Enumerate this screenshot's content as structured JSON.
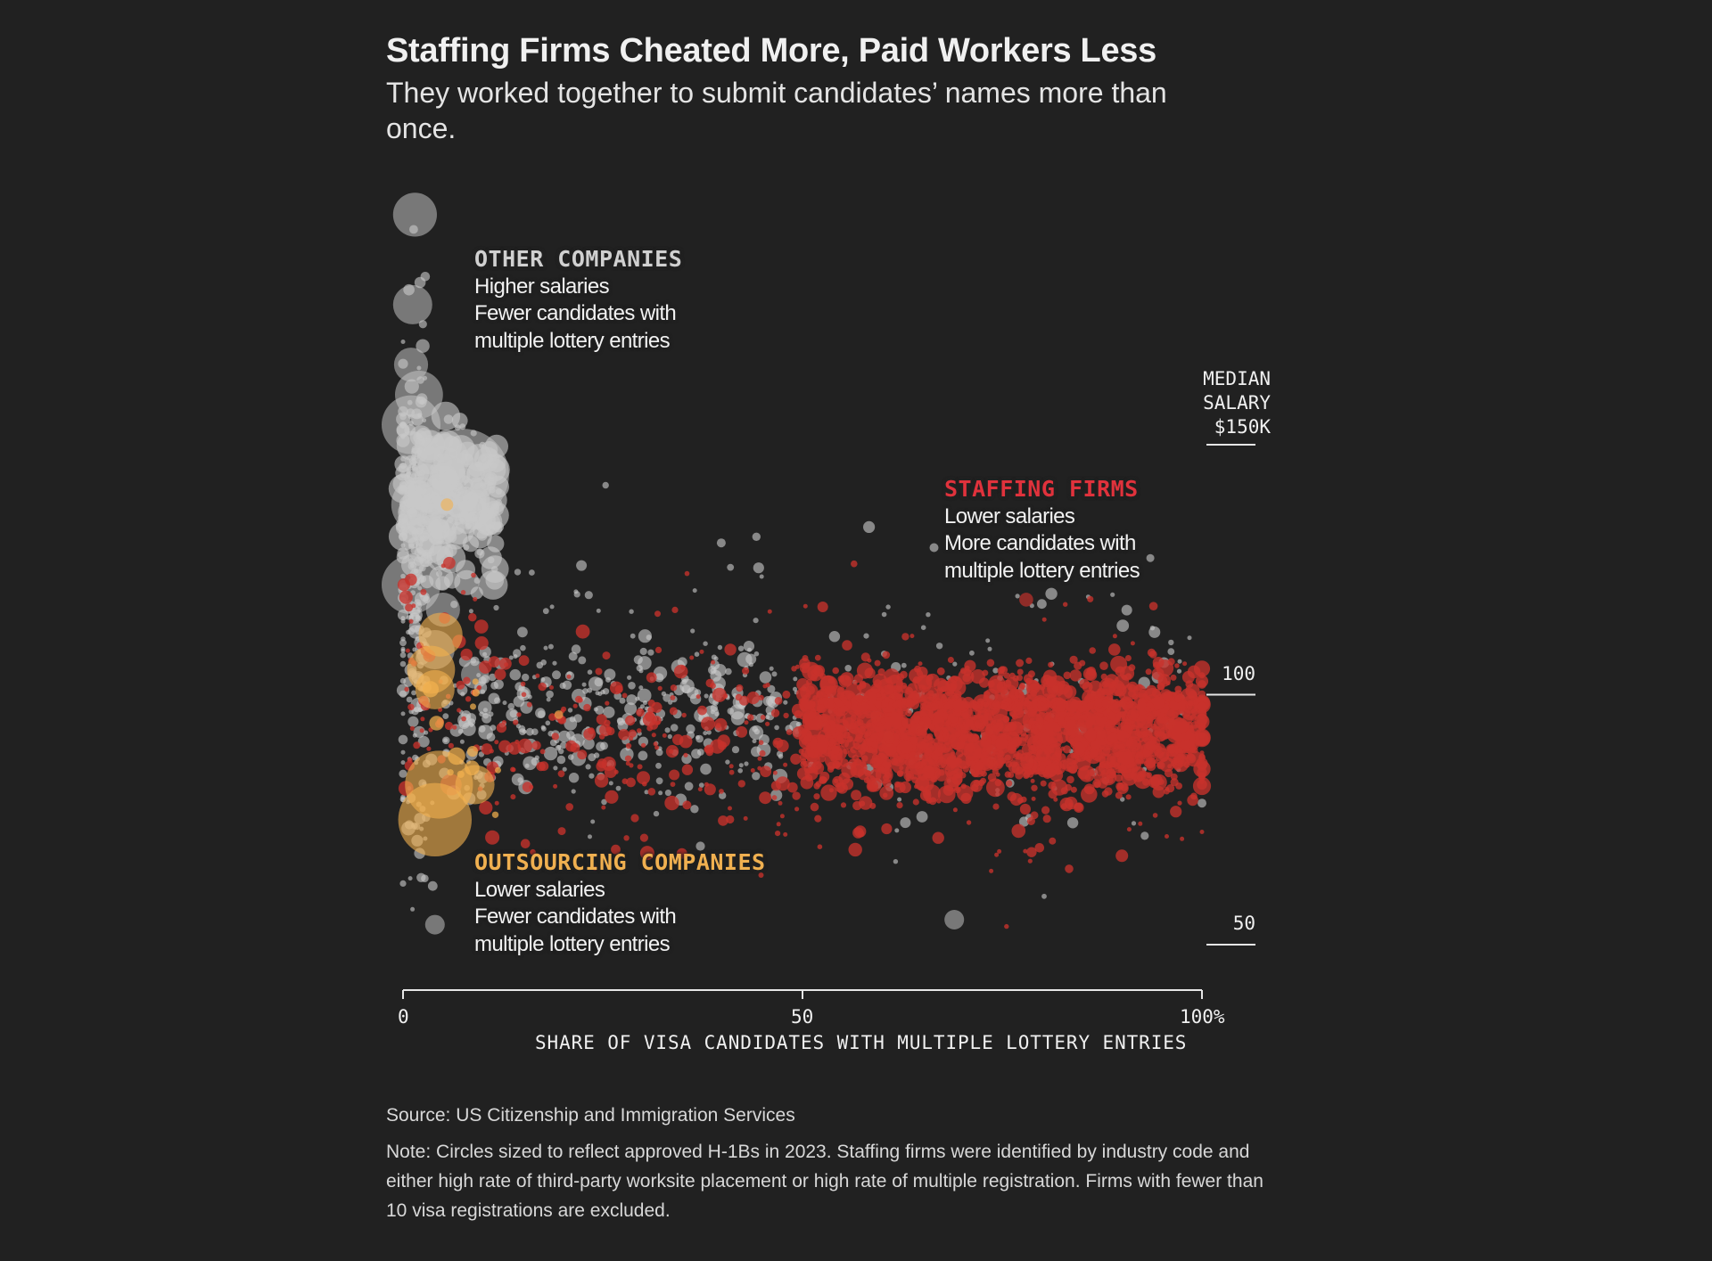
{
  "header": {
    "title": "Staffing Firms Cheated More, Paid Workers Less",
    "subtitle": "They worked together to submit candidates’ names more than once."
  },
  "annotations": {
    "other": {
      "heading": "OTHER COMPANIES",
      "lines": [
        "Higher salaries",
        "Fewer candidates with",
        "multiple lottery entries"
      ],
      "color": "#d0d0d0"
    },
    "staffing": {
      "heading": "STAFFING FIRMS",
      "lines": [
        "Lower salaries",
        "More candidates with",
        "multiple lottery entries"
      ],
      "color": "#e0323c"
    },
    "outsourcing": {
      "heading": "OUTSOURCING COMPANIES",
      "lines": [
        "Lower salaries",
        "Fewer candidates with",
        "multiple lottery entries"
      ],
      "color": "#f0b050"
    }
  },
  "footer": {
    "source": "Source: US Citizenship and Immigration Services",
    "note": "Note: Circles sized to reflect approved H-1Bs in 2023. Staffing firms were identified by industry code and either high rate of third-party worksite placement or high rate of multiple registration. Firms with fewer than 10 visa registrations are excluded."
  },
  "chart_data": {
    "type": "scatter",
    "title": "Staffing Firms Cheated More, Paid Workers Less",
    "xlabel": "SHARE OF VISA CANDIDATES WITH MULTIPLE LOTTERY ENTRIES",
    "ylabel": "MEDIAN SALARY",
    "xlim": [
      0,
      100
    ],
    "ylim": [
      42,
      204
    ],
    "x_ticks": [
      {
        "value": 0,
        "label": "0"
      },
      {
        "value": 50,
        "label": "50"
      },
      {
        "value": 100,
        "label": "100%"
      }
    ],
    "y_ticks": [
      {
        "value": 150,
        "label_lines": [
          "MEDIAN",
          "SALARY",
          "$150K"
        ]
      },
      {
        "value": 100,
        "label_lines": [
          "100"
        ]
      },
      {
        "value": 50,
        "label_lines": [
          "50"
        ]
      }
    ],
    "grid": false,
    "size_encoding": "approved H-1Bs in 2023",
    "colors": {
      "other": "#c8c8c8",
      "staffing": "#c8322c",
      "outsourcing": "#f2b04e",
      "background": "#212121",
      "axis": "#e6e6e6"
    },
    "series": [
      {
        "name": "Other companies",
        "key": "other",
        "notable_points": [
          {
            "x": 1.5,
            "y": 196,
            "size": 5
          },
          {
            "x": 1.2,
            "y": 178,
            "size": 4
          },
          {
            "x": 1.0,
            "y": 166,
            "size": 3
          },
          {
            "x": 2.0,
            "y": 160,
            "size": 6
          },
          {
            "x": 1.0,
            "y": 154,
            "size": 9
          },
          {
            "x": 7.5,
            "y": 144,
            "size": 22
          },
          {
            "x": 5.0,
            "y": 147,
            "size": 7
          },
          {
            "x": 2.0,
            "y": 138,
            "size": 8
          },
          {
            "x": 3.0,
            "y": 131,
            "size": 6
          },
          {
            "x": 1.0,
            "y": 122,
            "size": 9
          },
          {
            "x": 5.0,
            "y": 117,
            "size": 3
          },
          {
            "x": 4.0,
            "y": 109,
            "size": 4
          },
          {
            "x": 9.0,
            "y": 104,
            "size": 2
          },
          {
            "x": 4.0,
            "y": 54,
            "size": 1
          },
          {
            "x": 69,
            "y": 55,
            "size": 1
          }
        ],
        "cloud": [
          {
            "count": 260,
            "x": [
              0,
              12
            ],
            "y": [
              118,
              160
            ],
            "size": [
              0.1,
              2.5
            ]
          },
          {
            "count": 240,
            "x": [
              0,
              3
            ],
            "y": [
              45,
              200
            ],
            "size": [
              0.05,
              0.6
            ]
          },
          {
            "count": 330,
            "x": [
              5,
              50
            ],
            "y": [
              75,
              118
            ],
            "size": [
              0.05,
              0.6
            ]
          },
          {
            "count": 90,
            "x": [
              2,
              45
            ],
            "y": [
              55,
              150
            ],
            "size": [
              0.05,
              0.4
            ]
          },
          {
            "count": 120,
            "x": [
              50,
              100
            ],
            "y": [
              55,
              140
            ],
            "size": [
              0.05,
              0.4
            ]
          }
        ]
      },
      {
        "name": "Outsourcing companies",
        "key": "outsourcing",
        "notable_points": [
          {
            "x": 4.7,
            "y": 112,
            "size": 5
          },
          {
            "x": 3.5,
            "y": 105,
            "size": 6
          },
          {
            "x": 4.0,
            "y": 101,
            "size": 4
          },
          {
            "x": 9.0,
            "y": 82,
            "size": 4
          },
          {
            "x": 4.5,
            "y": 82,
            "size": 12
          },
          {
            "x": 4.0,
            "y": 75,
            "size": 14
          },
          {
            "x": 5.5,
            "y": 138,
            "size": 0.4
          },
          {
            "x": 19.5,
            "y": 96,
            "size": 0.2
          }
        ],
        "cloud": [
          {
            "count": 12,
            "x": [
              2,
              12
            ],
            "y": [
              70,
              110
            ],
            "size": [
              0.1,
              0.8
            ]
          }
        ]
      },
      {
        "name": "Staffing firms",
        "key": "staffing",
        "notable_points": [
          {
            "x": 6.0,
            "y": 82,
            "size": 1.2
          },
          {
            "x": 78,
            "y": 119,
            "size": 0.5
          }
        ],
        "cloud": [
          {
            "count": 1500,
            "x": [
              50,
              100
            ],
            "y": [
              75,
              110
            ],
            "size": [
              0.1,
              0.9
            ]
          },
          {
            "count": 260,
            "x": [
              50,
              100
            ],
            "y": [
              97,
              99
            ],
            "size": [
              0.1,
              0.6
            ]
          },
          {
            "count": 220,
            "x": [
              50,
              100
            ],
            "y": [
              60,
              118
            ],
            "size": [
              0.05,
              0.5
            ]
          },
          {
            "count": 200,
            "x": [
              10,
              50
            ],
            "y": [
              62,
              118
            ],
            "size": [
              0.05,
              0.6
            ]
          },
          {
            "count": 60,
            "x": [
              0,
              10
            ],
            "y": [
              70,
              140
            ],
            "size": [
              0.05,
              0.6
            ]
          },
          {
            "count": 70,
            "x": [
              30,
              100
            ],
            "y": [
              44,
              145
            ],
            "size": [
              0.05,
              0.4
            ]
          }
        ]
      }
    ]
  }
}
